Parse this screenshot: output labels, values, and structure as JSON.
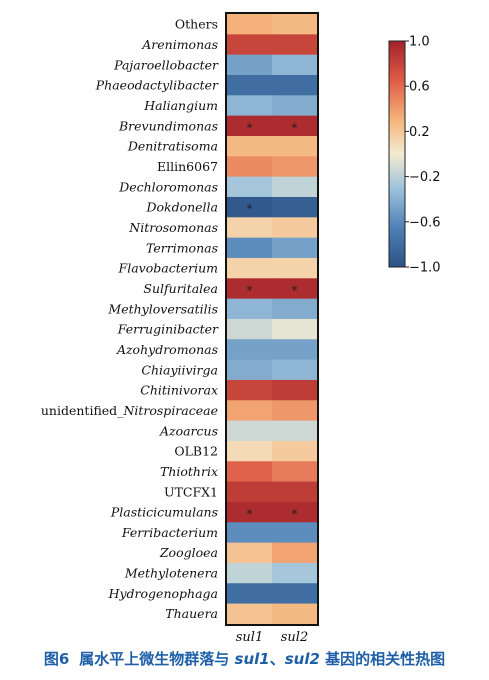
{
  "chart_data": {
    "type": "heatmap",
    "title": "",
    "columns": [
      "sul1",
      "sul2"
    ],
    "rows": [
      {
        "label": "Others",
        "italic": false,
        "values": [
          0.35,
          0.3
        ],
        "sig": [
          "",
          ""
        ]
      },
      {
        "label": "Arenimonas",
        "italic": true,
        "values": [
          0.8,
          0.8
        ],
        "sig": [
          "",
          ""
        ]
      },
      {
        "label": "Pajaroellobacter",
        "italic": true,
        "values": [
          -0.5,
          -0.4
        ],
        "sig": [
          "",
          ""
        ]
      },
      {
        "label": "Phaeodactylibacter",
        "italic": true,
        "values": [
          -0.8,
          -0.8
        ],
        "sig": [
          "",
          ""
        ]
      },
      {
        "label": "Haliangium",
        "italic": true,
        "values": [
          -0.4,
          -0.45
        ],
        "sig": [
          "",
          ""
        ]
      },
      {
        "label": "Brevundimonas",
        "italic": true,
        "values": [
          0.95,
          0.95
        ],
        "sig": [
          "*",
          "*"
        ]
      },
      {
        "label": "Denitratisoma",
        "italic": true,
        "values": [
          0.3,
          0.3
        ],
        "sig": [
          "",
          ""
        ]
      },
      {
        "label": "Ellin6067",
        "italic": false,
        "values": [
          0.5,
          0.45
        ],
        "sig": [
          "",
          ""
        ]
      },
      {
        "label": "Dechloromonas",
        "italic": true,
        "values": [
          -0.3,
          -0.2
        ],
        "sig": [
          "",
          ""
        ]
      },
      {
        "label": "Dokdonella",
        "italic": true,
        "values": [
          -0.95,
          -0.9
        ],
        "sig": [
          "*",
          ""
        ]
      },
      {
        "label": "Nitrosomonas",
        "italic": true,
        "values": [
          0.15,
          0.2
        ],
        "sig": [
          "",
          ""
        ]
      },
      {
        "label": "Terrimonas",
        "italic": true,
        "values": [
          -0.6,
          -0.5
        ],
        "sig": [
          "",
          ""
        ]
      },
      {
        "label": "Flavobacterium",
        "italic": true,
        "values": [
          0.15,
          0.15
        ],
        "sig": [
          "",
          ""
        ]
      },
      {
        "label": "Sulfuritalea",
        "italic": true,
        "values": [
          0.95,
          0.95
        ],
        "sig": [
          "*",
          "*"
        ]
      },
      {
        "label": "Methyloversatilis",
        "italic": true,
        "values": [
          -0.4,
          -0.45
        ],
        "sig": [
          "",
          ""
        ]
      },
      {
        "label": "Ferruginibacter",
        "italic": true,
        "values": [
          -0.15,
          -0.05
        ],
        "sig": [
          "",
          ""
        ]
      },
      {
        "label": "Azohydromonas",
        "italic": true,
        "values": [
          -0.5,
          -0.5
        ],
        "sig": [
          "",
          ""
        ]
      },
      {
        "label": "Chiayiivirga",
        "italic": true,
        "values": [
          -0.45,
          -0.4
        ],
        "sig": [
          "",
          ""
        ]
      },
      {
        "label": "Chitinivorax",
        "italic": true,
        "values": [
          0.8,
          0.85
        ],
        "sig": [
          "",
          ""
        ]
      },
      {
        "label": "unidentified_Nitrospiraceae",
        "italic": false,
        "italicPart": "Nitrospiraceae",
        "values": [
          0.4,
          0.45
        ],
        "sig": [
          "",
          ""
        ]
      },
      {
        "label": "Azoarcus",
        "italic": true,
        "values": [
          -0.15,
          -0.15
        ],
        "sig": [
          "",
          ""
        ]
      },
      {
        "label": "OLB12",
        "italic": false,
        "values": [
          0.1,
          0.2
        ],
        "sig": [
          "",
          ""
        ]
      },
      {
        "label": "Thiothrix",
        "italic": true,
        "values": [
          0.65,
          0.55
        ],
        "sig": [
          "",
          ""
        ]
      },
      {
        "label": "UTCFX1",
        "italic": false,
        "values": [
          0.85,
          0.85
        ],
        "sig": [
          "",
          ""
        ]
      },
      {
        "label": "Plasticicumulans",
        "italic": true,
        "values": [
          0.95,
          0.95
        ],
        "sig": [
          "*",
          "*"
        ]
      },
      {
        "label": "Ferribacterium",
        "italic": true,
        "values": [
          -0.6,
          -0.6
        ],
        "sig": [
          "",
          ""
        ]
      },
      {
        "label": "Zoogloea",
        "italic": true,
        "values": [
          0.25,
          0.4
        ],
        "sig": [
          "",
          ""
        ]
      },
      {
        "label": "Methylotenera",
        "italic": true,
        "values": [
          -0.2,
          -0.3
        ],
        "sig": [
          "",
          ""
        ]
      },
      {
        "label": "Hydrogenophaga",
        "italic": true,
        "values": [
          -0.8,
          -0.8
        ],
        "sig": [
          "",
          ""
        ]
      },
      {
        "label": "Thauera",
        "italic": true,
        "values": [
          0.25,
          0.3
        ],
        "sig": [
          "",
          ""
        ]
      }
    ],
    "colorbar": {
      "min": -1.0,
      "max": 1.0,
      "ticks": [
        1.0,
        0.6,
        0.2,
        -0.2,
        -0.6,
        -1.0
      ],
      "tick_labels": [
        "1.0",
        "0.6",
        "0.2",
        "−0.2",
        "−0.6",
        "−1.0"
      ],
      "colors": [
        "#2c5286",
        "#4d7fb5",
        "#9ec3dc",
        "#f3ead0",
        "#f5b57c",
        "#df5e48",
        "#a3232a"
      ]
    }
  },
  "caption": {
    "number": "图6",
    "text_before": "属水平上微生物群落与 ",
    "gene1": "sul1",
    "sep": "、",
    "gene2": "sul2",
    "text_after": " 基因的相关性热图"
  }
}
